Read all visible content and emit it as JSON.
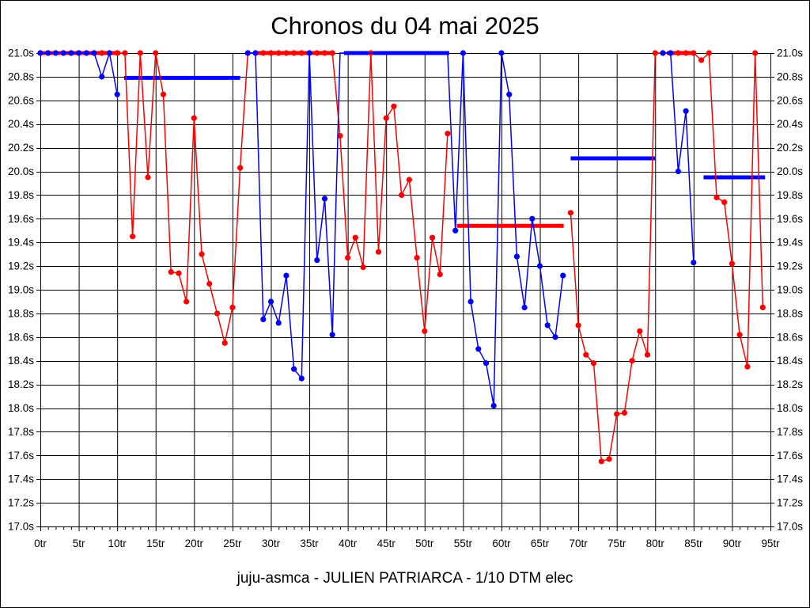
{
  "chart_data": {
    "type": "line",
    "title": "Chronos du 04 mai 2025",
    "footer": "juju-asmca - JULIEN PATRIARCA - 1/10 DTM elec",
    "x_unit": "tr",
    "y_unit": "s",
    "xlim": [
      0,
      95
    ],
    "ylim": [
      17.0,
      21.0
    ],
    "x_tick_step": 5,
    "y_tick_step": 0.2,
    "grid": true,
    "background_color": "#ffffff",
    "grid_color": "#000000",
    "x_tick_labels": [
      "0tr",
      "5tr",
      "10tr",
      "15tr",
      "20tr",
      "25tr",
      "30tr",
      "35tr",
      "40tr",
      "45tr",
      "50tr",
      "55tr",
      "60tr",
      "65tr",
      "70tr",
      "75tr",
      "80tr",
      "85tr",
      "90tr",
      "95tr"
    ],
    "y_tick_labels": [
      "21.0s",
      "20.8s",
      "20.6s",
      "20.4s",
      "20.2s",
      "20.0s",
      "19.8s",
      "19.6s",
      "19.4s",
      "19.2s",
      "19.0s",
      "18.8s",
      "18.6s",
      "18.4s",
      "18.2s",
      "18.0s",
      "17.8s",
      "17.6s",
      "17.4s",
      "17.2s",
      "17.0s"
    ],
    "series": [
      {
        "name": "red-driver",
        "color": "#ff0000",
        "segments": [
          [
            [
              0,
              21
            ],
            [
              1,
              21
            ],
            [
              2,
              21
            ],
            [
              3,
              21
            ],
            [
              4,
              21
            ],
            [
              5,
              21
            ],
            [
              6,
              21
            ],
            [
              7,
              21
            ],
            [
              8,
              21
            ],
            [
              9,
              21
            ],
            [
              10,
              21
            ],
            [
              11,
              21
            ],
            [
              12,
              19.45
            ],
            [
              13,
              21
            ],
            [
              14,
              19.95
            ],
            [
              15,
              21
            ],
            [
              16,
              20.65
            ],
            [
              17,
              19.15
            ],
            [
              18,
              19.14
            ],
            [
              19,
              18.9
            ],
            [
              20,
              20.45
            ],
            [
              21,
              19.3
            ],
            [
              22,
              19.05
            ],
            [
              23,
              18.8
            ],
            [
              24,
              18.55
            ],
            [
              25,
              18.85
            ],
            [
              26,
              20.03
            ],
            [
              27,
              21
            ],
            [
              28,
              21
            ],
            [
              29,
              21
            ],
            [
              30,
              21
            ],
            [
              31,
              21
            ],
            [
              32,
              21
            ],
            [
              33,
              21
            ],
            [
              34,
              21
            ],
            [
              35,
              21
            ],
            [
              36,
              21
            ],
            [
              37,
              21
            ],
            [
              38,
              21
            ],
            [
              39,
              20.3
            ],
            [
              40,
              19.27
            ],
            [
              41,
              19.44
            ],
            [
              42,
              19.19
            ],
            [
              43,
              21
            ],
            [
              44,
              19.32
            ],
            [
              45,
              20.45
            ],
            [
              46,
              20.55
            ],
            [
              47,
              19.8
            ],
            [
              48,
              19.93
            ],
            [
              49,
              19.27
            ],
            [
              50,
              18.65
            ],
            [
              51,
              19.44
            ],
            [
              52,
              19.13
            ],
            [
              53,
              20.32
            ]
          ],
          [
            [
              69,
              19.65
            ],
            [
              70,
              18.7
            ],
            [
              71,
              18.45
            ],
            [
              72,
              18.38
            ],
            [
              73,
              17.55
            ],
            [
              74,
              17.57
            ],
            [
              75,
              17.95
            ],
            [
              76,
              17.96
            ],
            [
              77,
              18.4
            ],
            [
              78,
              18.65
            ],
            [
              79,
              18.45
            ],
            [
              80,
              21
            ],
            [
              81,
              21
            ],
            [
              82,
              21
            ],
            [
              83,
              21
            ],
            [
              84,
              21
            ],
            [
              85,
              21
            ],
            [
              86,
              20.94
            ],
            [
              87,
              21
            ],
            [
              88,
              19.78
            ],
            [
              89,
              19.74
            ],
            [
              90,
              19.22
            ],
            [
              91,
              18.62
            ],
            [
              92,
              18.35
            ],
            [
              93,
              21
            ],
            [
              94,
              18.85
            ]
          ]
        ]
      },
      {
        "name": "blue-driver",
        "color": "#0000ff",
        "segments": [
          [
            [
              0,
              21
            ],
            [
              1,
              21
            ],
            [
              2,
              21
            ],
            [
              3,
              21
            ],
            [
              4,
              21
            ],
            [
              5,
              21
            ],
            [
              6,
              21
            ],
            [
              7,
              21
            ],
            [
              8,
              20.8
            ],
            [
              9,
              21
            ],
            [
              10,
              20.65
            ]
          ],
          [
            [
              27,
              21
            ],
            [
              28,
              21
            ],
            [
              29,
              18.75
            ],
            [
              30,
              18.9
            ],
            [
              31,
              18.72
            ],
            [
              32,
              19.12
            ],
            [
              33,
              18.33
            ],
            [
              34,
              18.25
            ],
            [
              35,
              21
            ],
            [
              36,
              19.25
            ],
            [
              37,
              19.77
            ],
            [
              38,
              18.62
            ],
            [
              39,
              21,
              1
            ],
            [
              40,
              21,
              1
            ],
            [
              41,
              21,
              1
            ],
            [
              42,
              21,
              1
            ],
            [
              43,
              21,
              1
            ],
            [
              44,
              21,
              1
            ],
            [
              45,
              21,
              1
            ],
            [
              46,
              21,
              1
            ],
            [
              47,
              21,
              1
            ],
            [
              48,
              21,
              1
            ],
            [
              49,
              21,
              1
            ],
            [
              50,
              21,
              1
            ],
            [
              51,
              21,
              1
            ],
            [
              52,
              21,
              1
            ],
            [
              53,
              21,
              1
            ],
            [
              54,
              19.5
            ],
            [
              55,
              21
            ],
            [
              56,
              18.9
            ],
            [
              57,
              18.5
            ],
            [
              58,
              18.38
            ],
            [
              59,
              18.02
            ],
            [
              60,
              21
            ],
            [
              61,
              20.65
            ],
            [
              62,
              19.28
            ],
            [
              63,
              18.85
            ],
            [
              64,
              19.6
            ],
            [
              65,
              19.2
            ],
            [
              66,
              18.7
            ],
            [
              67,
              18.6
            ],
            [
              68,
              19.12
            ]
          ],
          [
            [
              81,
              21
            ],
            [
              82,
              21
            ],
            [
              83,
              20.0
            ],
            [
              84,
              20.51
            ],
            [
              85,
              19.23
            ]
          ]
        ]
      }
    ],
    "stint_average_bars": [
      {
        "color": "#0000ff",
        "from": 10.9,
        "to": 26.0,
        "value": 20.79
      },
      {
        "color": "#0000ff",
        "from": 39.5,
        "to": 53.2,
        "value": 21.0
      },
      {
        "color": "#0000ff",
        "from": 69.0,
        "to": 80.0,
        "value": 20.11
      },
      {
        "color": "#0000ff",
        "from": 86.3,
        "to": 94.3,
        "value": 19.95
      },
      {
        "color": "#ff0000",
        "from": 0.0,
        "to": 10.4,
        "value": 21.0
      },
      {
        "color": "#ff0000",
        "from": 28.0,
        "to": 38.1,
        "value": 21.0
      },
      {
        "color": "#ff0000",
        "from": 54.2,
        "to": 68.1,
        "value": 19.54
      },
      {
        "color": "#ff0000",
        "from": 81.5,
        "to": 85.2,
        "value": 21.0
      }
    ]
  }
}
